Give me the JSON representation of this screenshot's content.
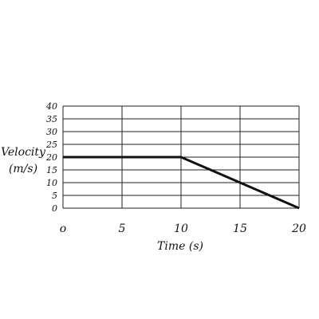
{
  "chart_data": {
    "type": "line",
    "title": "",
    "xlabel": "Time (s)",
    "ylabel_line1": "Velocity",
    "ylabel_line2": "(m/s)",
    "x_ticks": [
      "o",
      "5",
      "10",
      "15",
      "20"
    ],
    "y_ticks": [
      "0",
      "5",
      "10",
      "15",
      "20",
      "25",
      "30",
      "35",
      "40"
    ],
    "xlim": [
      0,
      20
    ],
    "ylim": [
      0,
      40
    ],
    "grid": true,
    "series": [
      {
        "x": [
          0,
          10,
          20
        ],
        "y": [
          20,
          20,
          0
        ]
      }
    ],
    "colors": {
      "grid": "#222222",
      "line": "#111111"
    }
  }
}
